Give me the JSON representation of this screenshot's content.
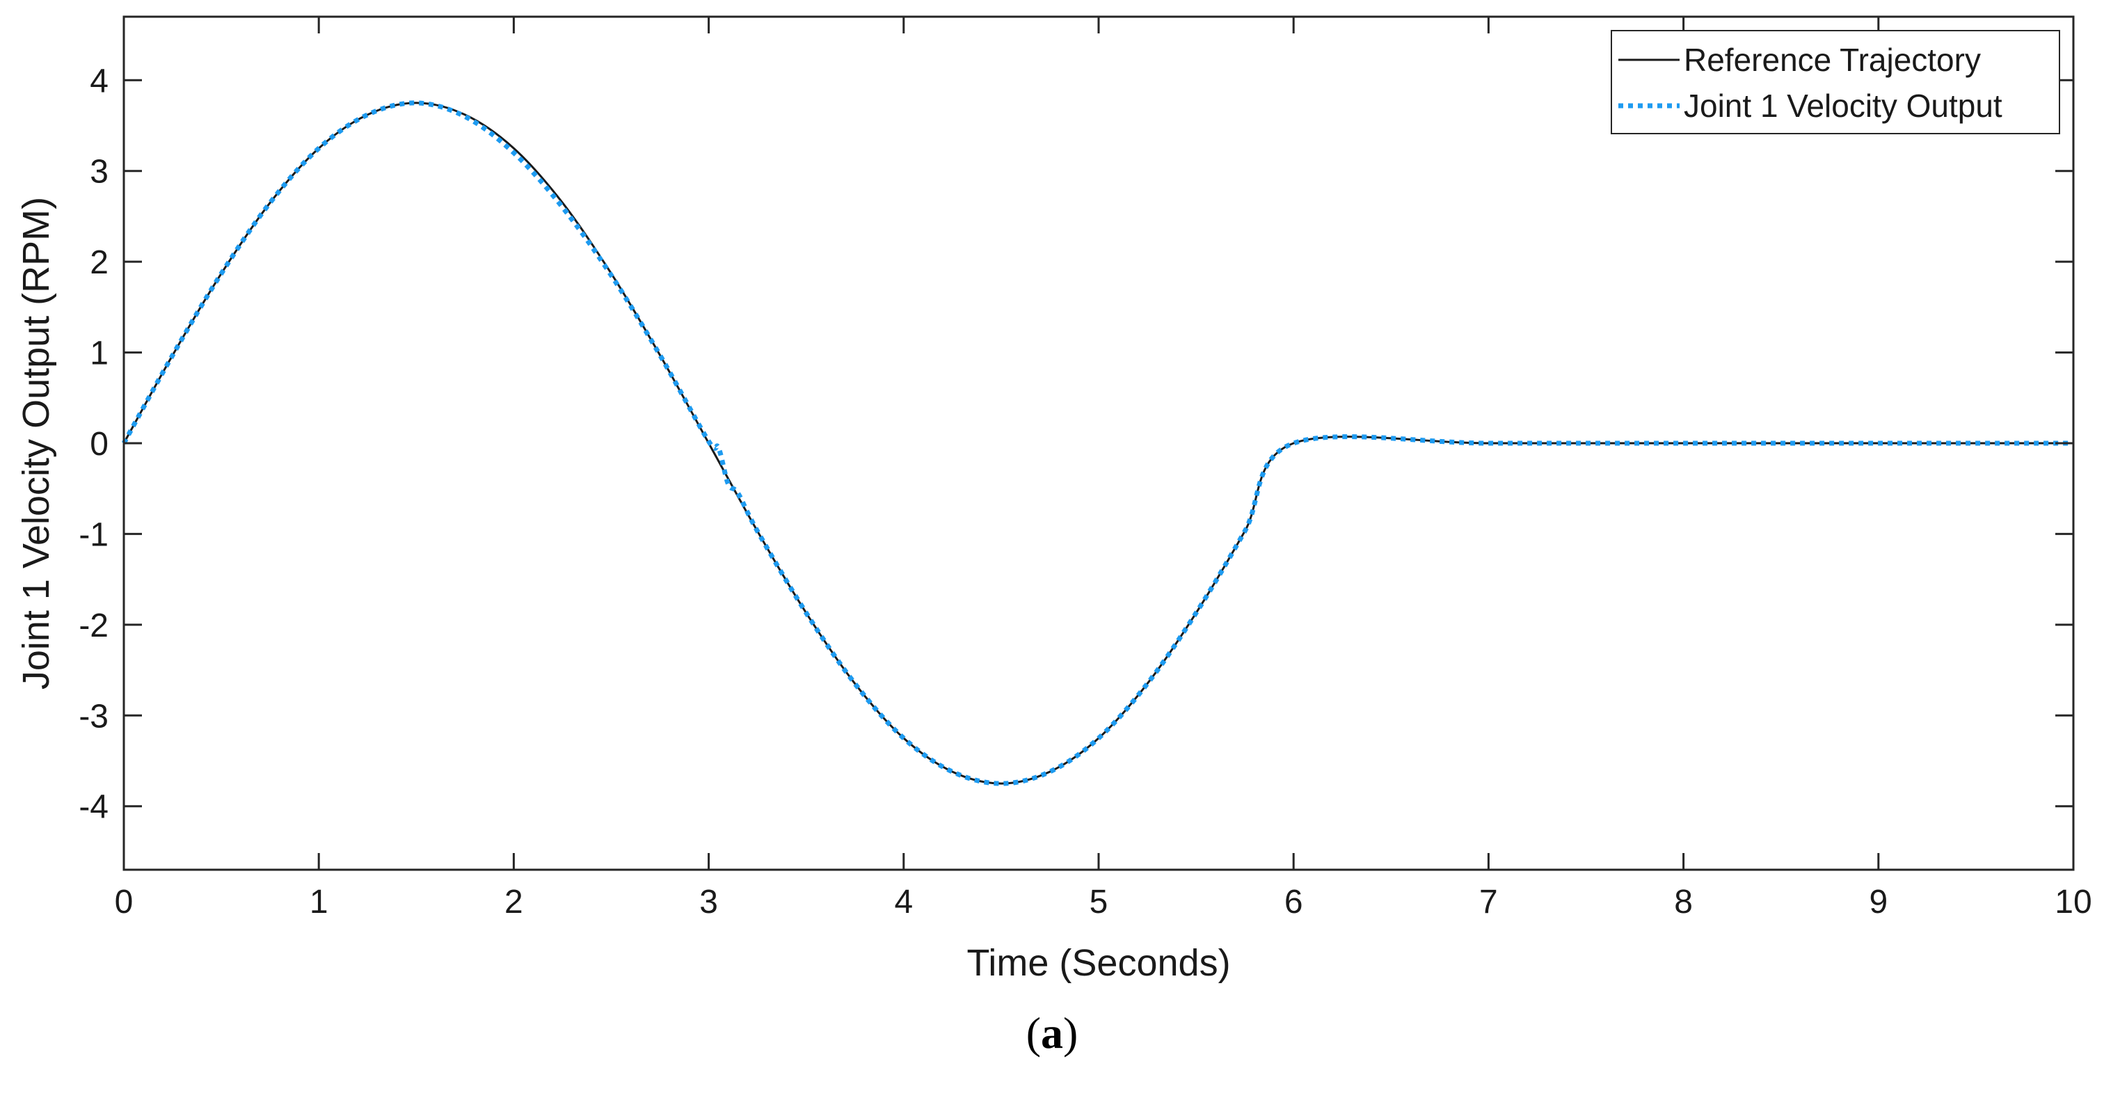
{
  "chart_data": {
    "type": "line",
    "title": "",
    "xlabel": "Time (Seconds)",
    "ylabel": "Joint 1 Velocity Output (RPM)",
    "xlim": [
      0,
      10
    ],
    "ylim": [
      -4.7,
      4.7
    ],
    "x_ticks": [
      0,
      1,
      2,
      3,
      4,
      5,
      6,
      7,
      8,
      9,
      10
    ],
    "y_ticks": [
      4,
      3,
      2,
      1,
      0,
      -1,
      -2,
      -3,
      -4
    ],
    "grid": false,
    "legend_position": "top-right",
    "series": [
      {
        "name": "Reference Trajectory",
        "style": "solid",
        "color": "#1a1a1a",
        "x": [
          0,
          0.25,
          0.5,
          0.75,
          1.0,
          1.25,
          1.5,
          1.75,
          2.0,
          2.25,
          2.5,
          2.75,
          3.0,
          3.25,
          3.5,
          3.75,
          4.0,
          4.25,
          4.5,
          4.75,
          5.0,
          5.25,
          5.5,
          5.75,
          6.0,
          7.0,
          8.0,
          9.0,
          10.0
        ],
        "y": [
          0,
          0.97,
          1.87,
          2.65,
          3.25,
          3.62,
          3.75,
          3.62,
          3.25,
          2.65,
          1.87,
          0.97,
          0,
          -0.97,
          -1.87,
          -2.65,
          -3.25,
          -3.62,
          -3.75,
          -3.62,
          -3.25,
          -2.65,
          -1.87,
          -0.97,
          0,
          0,
          0,
          0,
          0
        ]
      },
      {
        "name": "Joint 1 Velocity Output",
        "style": "dotted",
        "color": "#1e9bf0",
        "x": [
          0,
          0.25,
          0.5,
          0.75,
          1.0,
          1.25,
          1.5,
          1.75,
          2.0,
          2.25,
          2.5,
          2.75,
          3.0,
          3.05,
          3.1,
          3.15,
          3.25,
          3.5,
          3.75,
          4.0,
          4.25,
          4.5,
          4.75,
          5.0,
          5.25,
          5.5,
          5.75,
          6.0,
          7.0,
          8.0,
          9.0,
          10.0
        ],
        "y": [
          0,
          0.97,
          1.87,
          2.65,
          3.25,
          3.62,
          3.75,
          3.6,
          3.2,
          2.6,
          1.85,
          0.97,
          0.02,
          -0.05,
          -0.45,
          -0.55,
          -0.97,
          -1.87,
          -2.65,
          -3.25,
          -3.62,
          -3.75,
          -3.62,
          -3.25,
          -2.65,
          -1.87,
          -0.97,
          0,
          0,
          0,
          0,
          0
        ]
      }
    ]
  },
  "caption": {
    "open": "(",
    "letter": "a",
    "close": ")"
  }
}
